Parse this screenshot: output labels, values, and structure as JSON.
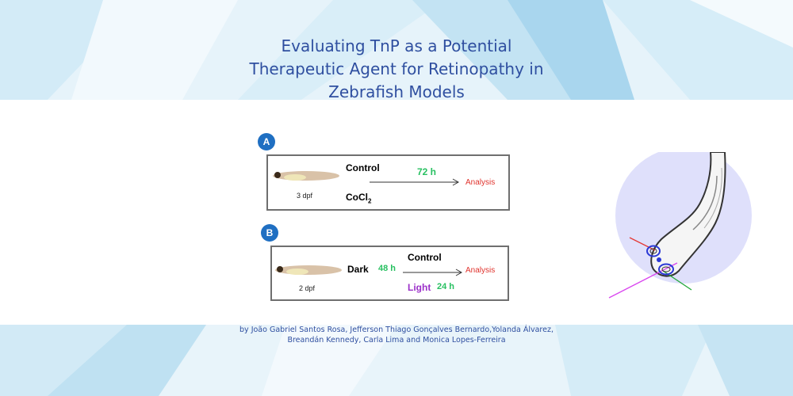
{
  "title": {
    "line1": "Evaluating TnP as a Potential",
    "line2": "Therapeutic Agent for Retinopathy in",
    "line3": "Zebrafish Models"
  },
  "authors": {
    "line1": "by João Gabriel Santos Rosa, Jefferson Thiago Gonçalves Bernardo,Yolanda Álvarez,",
    "line2": "Breandán Kennedy, Carla Lima  and Monica Lopes-Ferreira"
  },
  "panel_a": {
    "badge": "A",
    "age": "3 dpf",
    "control": "Control",
    "compound": "CoCl",
    "compound_sub": "2",
    "duration": "72 h",
    "analysis": "Analysis"
  },
  "panel_b": {
    "badge": "B",
    "age": "2 dpf",
    "dark": "Dark",
    "dark_duration": "48 h",
    "control": "Control",
    "light": "Light",
    "light_duration": "24 h",
    "analysis": "Analysis"
  },
  "colors": {
    "title": "#2f4fa0",
    "green": "#28c061",
    "red": "#e0332d",
    "purple": "#9b30c9",
    "badge": "#1f6fc2"
  }
}
